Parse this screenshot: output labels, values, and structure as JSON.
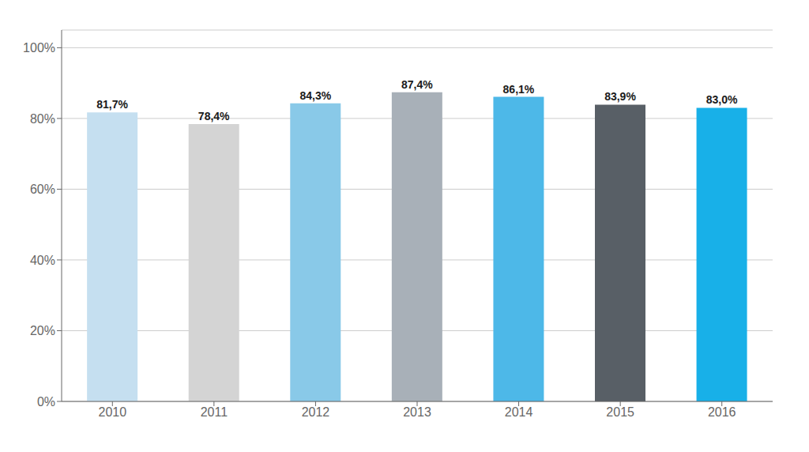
{
  "chart_data": {
    "type": "bar",
    "categories": [
      "2010",
      "2011",
      "2012",
      "2013",
      "2014",
      "2015",
      "2016"
    ],
    "values": [
      81.7,
      78.4,
      84.3,
      87.4,
      86.1,
      83.9,
      83.0
    ],
    "value_labels": [
      "81,7%",
      "78,4%",
      "84,3%",
      "87,4%",
      "86,1%",
      "83,9%",
      "83,0%"
    ],
    "colors": [
      "#c5dff0",
      "#d4d4d4",
      "#89c9e8",
      "#a8b0b8",
      "#4db8e8",
      "#585f66",
      "#18b0e8"
    ],
    "ylim": [
      0,
      105
    ],
    "yticks": [
      {
        "value": 0,
        "label": "0%"
      },
      {
        "value": 20,
        "label": "20%"
      },
      {
        "value": 40,
        "label": "40%"
      },
      {
        "value": 60,
        "label": "60%"
      },
      {
        "value": 80,
        "label": "80%"
      },
      {
        "value": 100,
        "label": "100%"
      }
    ],
    "grid": true
  }
}
